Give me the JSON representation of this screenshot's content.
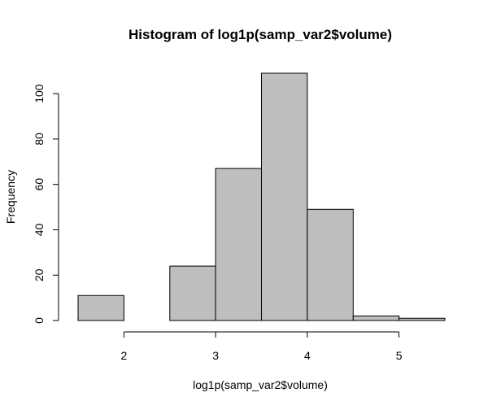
{
  "chart_data": {
    "type": "bar",
    "title": "Histogram of log1p(samp_var2$volume)",
    "xlabel": "log1p(samp_var2$volume)",
    "ylabel": "Frequency",
    "bins": [
      {
        "from": 1.5,
        "to": 2.0,
        "count": 11
      },
      {
        "from": 2.0,
        "to": 2.5,
        "count": 0
      },
      {
        "from": 2.5,
        "to": 3.0,
        "count": 24
      },
      {
        "from": 3.0,
        "to": 3.5,
        "count": 67
      },
      {
        "from": 3.5,
        "to": 4.0,
        "count": 109
      },
      {
        "from": 4.0,
        "to": 4.5,
        "count": 49
      },
      {
        "from": 4.5,
        "to": 5.0,
        "count": 2
      },
      {
        "from": 5.0,
        "to": 5.5,
        "count": 1
      }
    ],
    "x_ticks": [
      2,
      3,
      4,
      5
    ],
    "y_ticks": [
      0,
      20,
      40,
      60,
      80,
      100
    ],
    "xlim": [
      1.5,
      5.5
    ],
    "ylim": [
      0,
      109
    ],
    "bar_fill": "#bebebe",
    "bar_stroke": "#000000",
    "grid": false,
    "legend": "none"
  }
}
